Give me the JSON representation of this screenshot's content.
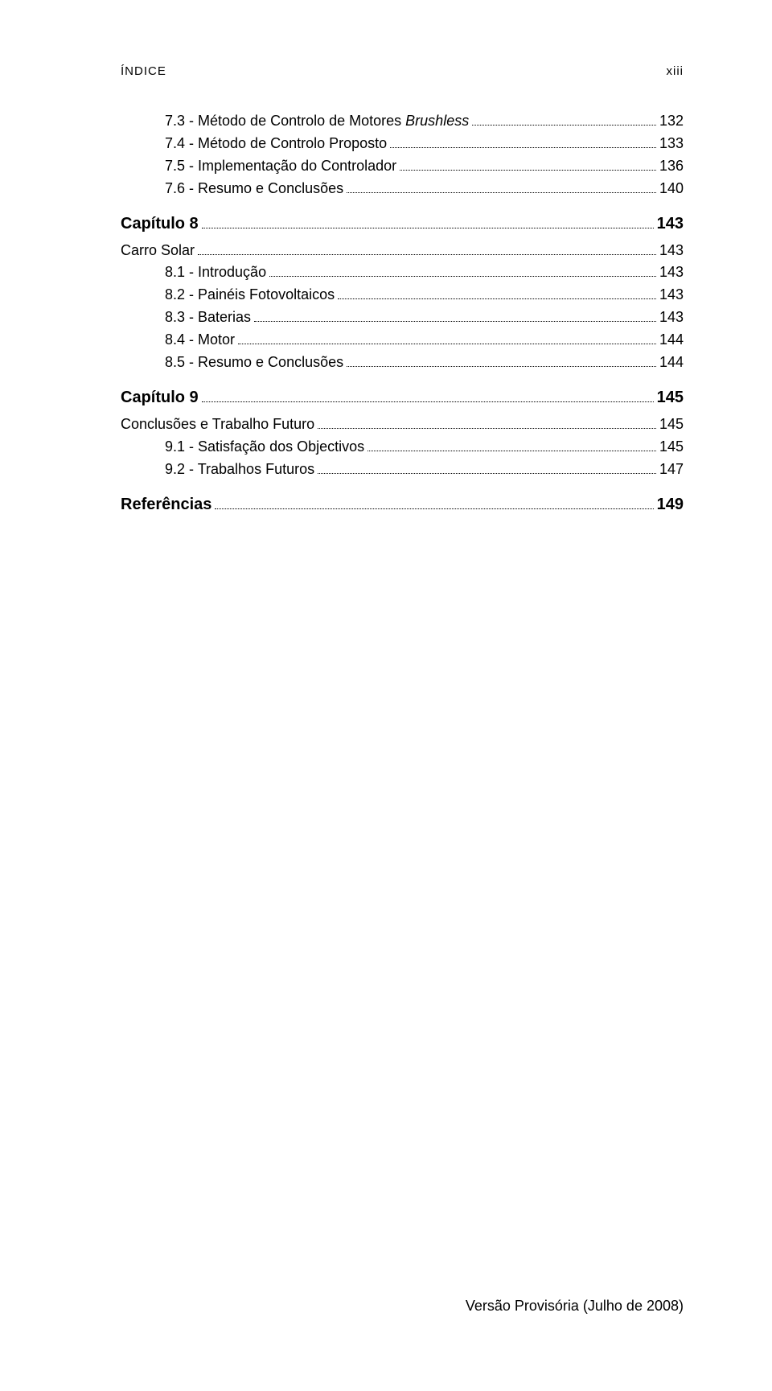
{
  "header": {
    "left": "ÍNDICE",
    "right": "xiii"
  },
  "toc": [
    {
      "kind": "sub",
      "label_pre": "7.3 - Método de Controlo de Motores ",
      "label_italic": "Brushless",
      "label_post": "",
      "page": "132"
    },
    {
      "kind": "sub",
      "label_pre": "7.4 - Método de Controlo Proposto",
      "label_italic": "",
      "label_post": "",
      "page": "133"
    },
    {
      "kind": "sub",
      "label_pre": "7.5 - Implementação do Controlador",
      "label_italic": "",
      "label_post": "",
      "page": "136"
    },
    {
      "kind": "sub",
      "label_pre": "7.6 - Resumo e Conclusões",
      "label_italic": "",
      "label_post": "",
      "page": "140"
    },
    {
      "kind": "chapter",
      "label_pre": "Capítulo 8",
      "label_italic": "",
      "label_post": "",
      "page": "143"
    },
    {
      "kind": "section",
      "label_pre": "Carro Solar",
      "label_italic": "",
      "label_post": "",
      "page": "143"
    },
    {
      "kind": "sub",
      "label_pre": "8.1 - Introdução",
      "label_italic": "",
      "label_post": "",
      "page": "143"
    },
    {
      "kind": "sub",
      "label_pre": "8.2 - Painéis Fotovoltaicos",
      "label_italic": "",
      "label_post": "",
      "page": "143"
    },
    {
      "kind": "sub",
      "label_pre": "8.3 - Baterias",
      "label_italic": "",
      "label_post": "",
      "page": "143"
    },
    {
      "kind": "sub",
      "label_pre": "8.4 - Motor",
      "label_italic": "",
      "label_post": "",
      "page": "144"
    },
    {
      "kind": "sub",
      "label_pre": "8.5 - Resumo e Conclusões",
      "label_italic": "",
      "label_post": "",
      "page": "144"
    },
    {
      "kind": "chapter",
      "label_pre": "Capítulo 9",
      "label_italic": "",
      "label_post": "",
      "page": "145"
    },
    {
      "kind": "section",
      "label_pre": "Conclusões e Trabalho Futuro",
      "label_italic": "",
      "label_post": "",
      "page": "145"
    },
    {
      "kind": "sub",
      "label_pre": "9.1 - Satisfação dos Objectivos",
      "label_italic": "",
      "label_post": "",
      "page": "145"
    },
    {
      "kind": "sub",
      "label_pre": "9.2 - Trabalhos Futuros",
      "label_italic": "",
      "label_post": "",
      "page": "147"
    },
    {
      "kind": "chapter",
      "label_pre": "Referências",
      "label_italic": "",
      "label_post": "",
      "page": "149"
    }
  ],
  "footer": "Versão Provisória (Julho de 2008)"
}
